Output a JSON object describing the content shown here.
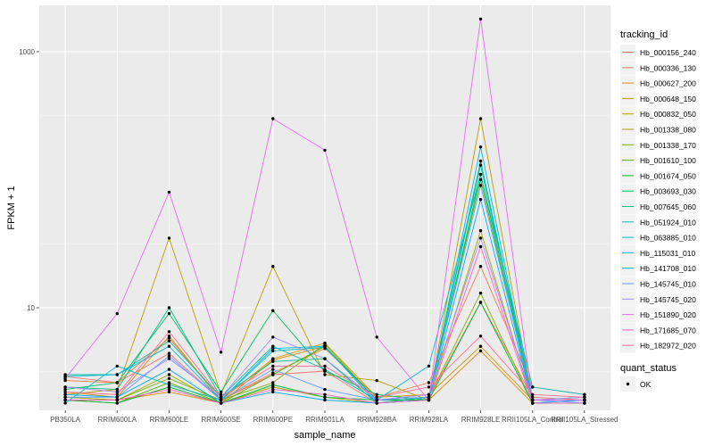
{
  "chart_data": {
    "type": "line",
    "title": "",
    "xlabel": "sample_name",
    "ylabel": "FPKM + 1",
    "y_scale": "log10",
    "ylim": [
      1.58,
      2300
    ],
    "y_ticks": [
      10,
      1000
    ],
    "y_tick_labels": [
      "10",
      "1000"
    ],
    "categories": [
      "PB350LA",
      "RRIM600LA",
      "RRIM600LE",
      "RRIM600SE",
      "RRIM600PE",
      "RRIM901LA",
      "RRIM928BA",
      "RRIM928LA",
      "RRIM928LE",
      "RRII105LA_Control",
      "RRII105LA_Stressed"
    ],
    "legend": {
      "position": "right",
      "color_title": "tracking_id",
      "shape_title": "quant_status",
      "shape_entries": [
        "OK"
      ]
    },
    "series": [
      {
        "name": "Hb_000156_240",
        "color": "#F8766D",
        "values": [
          2.9,
          2.6,
          4.4,
          1.9,
          3.0,
          3.2,
          1.8,
          2.0,
          11.0,
          2.0,
          1.9
        ]
      },
      {
        "name": "Hb_000336_130",
        "color": "#EE8044",
        "values": [
          2.7,
          2.6,
          5.8,
          1.9,
          3.1,
          4.8,
          2.0,
          2.6,
          21.0,
          2.4,
          2.1
        ]
      },
      {
        "name": "Hb_000627_200",
        "color": "#E18A00",
        "values": [
          2.0,
          1.9,
          2.2,
          1.8,
          3.9,
          5.0,
          1.9,
          1.9,
          4.6,
          1.8,
          1.8
        ]
      },
      {
        "name": "Hb_000648_150",
        "color": "#CF9400",
        "values": [
          2.2,
          2.0,
          6.0,
          1.9,
          4.0,
          5.3,
          2.0,
          2.1,
          5.0,
          1.9,
          1.9
        ]
      },
      {
        "name": "Hb_000832_050",
        "color": "#B89D00",
        "values": [
          2.1,
          2.3,
          35.0,
          2.1,
          21.0,
          3.0,
          2.7,
          1.9,
          300.0,
          1.9,
          2.0
        ]
      },
      {
        "name": "Hb_001338_080",
        "color": "#9DA700",
        "values": [
          2.0,
          1.9,
          3.0,
          1.8,
          2.4,
          2.0,
          1.8,
          1.9,
          40.0,
          1.8,
          1.9
        ]
      },
      {
        "name": "Hb_001338_170",
        "color": "#7BAE00",
        "values": [
          1.9,
          1.9,
          2.8,
          1.9,
          2.6,
          5.2,
          1.9,
          2.0,
          13.0,
          1.8,
          1.8
        ]
      },
      {
        "name": "Hb_001610_100",
        "color": "#47B400",
        "values": [
          1.9,
          1.8,
          2.6,
          1.8,
          3.0,
          5.0,
          1.9,
          2.0,
          100.0,
          1.8,
          1.8
        ]
      },
      {
        "name": "Hb_001674_050",
        "color": "#00B92F",
        "values": [
          1.9,
          1.8,
          2.4,
          1.8,
          2.5,
          2.0,
          1.9,
          1.9,
          11.0,
          1.8,
          1.8
        ]
      },
      {
        "name": "Hb_003693_030",
        "color": "#00BC63",
        "values": [
          2.3,
          2.6,
          9.0,
          2.2,
          9.5,
          3.2,
          2.1,
          1.9,
          110.0,
          1.9,
          1.9
        ]
      },
      {
        "name": "Hb_007645_060",
        "color": "#00BE88",
        "values": [
          2.4,
          2.3,
          10.0,
          2.0,
          3.8,
          4.0,
          1.8,
          2.0,
          130.0,
          1.9,
          1.9
        ]
      },
      {
        "name": "Hb_051924_010",
        "color": "#00BFA8",
        "values": [
          3.0,
          3.0,
          5.5,
          2.0,
          5.0,
          3.3,
          1.9,
          2.0,
          140.0,
          1.9,
          2.0
        ]
      },
      {
        "name": "Hb_063885_010",
        "color": "#00BDC5",
        "values": [
          1.8,
          3.5,
          2.5,
          1.9,
          4.6,
          4.9,
          1.9,
          3.5,
          110.0,
          2.4,
          2.1
        ]
      },
      {
        "name": "Hb_115031_010",
        "color": "#00B7DF",
        "values": [
          2.9,
          3.0,
          5.0,
          1.9,
          4.8,
          5.0,
          1.8,
          1.9,
          180.0,
          1.9,
          1.9
        ]
      },
      {
        "name": "Hb_141708_010",
        "color": "#00ACF5",
        "values": [
          2.1,
          2.0,
          3.3,
          1.8,
          2.2,
          1.9,
          1.8,
          1.9,
          70.0,
          1.8,
          1.9
        ]
      },
      {
        "name": "Hb_145745_010",
        "color": "#619CFF",
        "values": [
          2.0,
          2.0,
          4.2,
          1.9,
          3.3,
          2.3,
          1.9,
          2.0,
          90.0,
          1.9,
          1.8
        ]
      },
      {
        "name": "Hb_145745_020",
        "color": "#A58AFF",
        "values": [
          2.4,
          2.2,
          4.0,
          2.0,
          5.9,
          4.0,
          1.9,
          2.1,
          35.0,
          1.9,
          2.0
        ]
      },
      {
        "name": "Hb_151890_020",
        "color": "#E76BF3",
        "values": [
          2.8,
          9.0,
          80.0,
          4.5,
          300.0,
          170.0,
          5.9,
          1.9,
          1800.0,
          1.9,
          1.9
        ]
      },
      {
        "name": "Hb_171685_070",
        "color": "#FF61C3",
        "values": [
          1.9,
          1.9,
          2.3,
          1.8,
          2.3,
          2.1,
          1.8,
          1.9,
          30.0,
          1.8,
          1.8
        ]
      },
      {
        "name": "Hb_182972_020",
        "color": "#FF6C91",
        "values": [
          2.2,
          2.1,
          6.5,
          2.0,
          3.5,
          3.5,
          2.0,
          2.4,
          6.0,
          2.1,
          2.0
        ]
      }
    ]
  }
}
